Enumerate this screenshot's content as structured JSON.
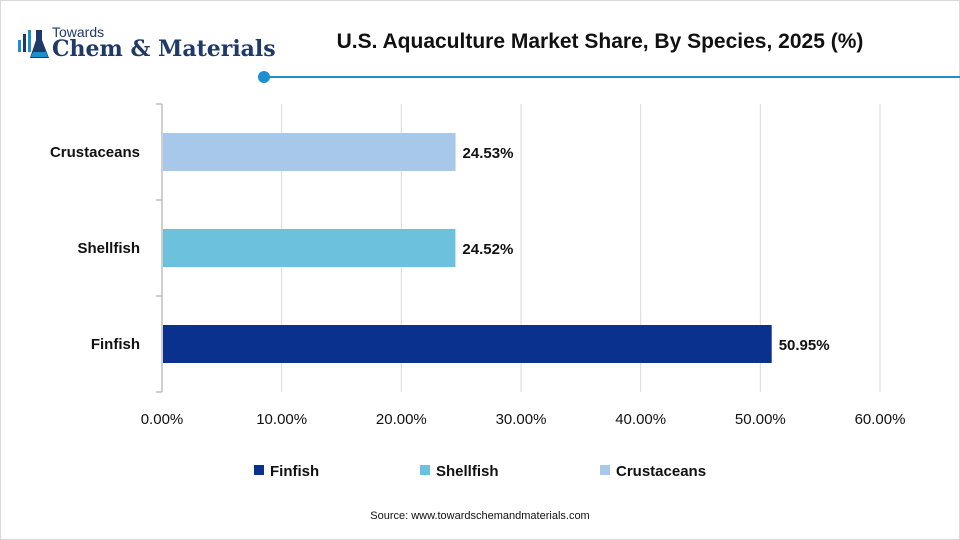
{
  "logo": {
    "towards": "Towards",
    "brand": "Chem & Materials"
  },
  "source": "Source: www.towardschemandmaterials.com",
  "colors": {
    "accent": "#1b8fd0",
    "finfish": "#0b318f",
    "shellfish": "#6cc1dc",
    "crustaceans": "#a7c8e8"
  },
  "chart_data": {
    "type": "bar",
    "orientation": "horizontal",
    "title": "U.S. Aquaculture Market Share, By Species, 2025 (%)",
    "categories": [
      "Crustaceans",
      "Shellfish",
      "Finfish"
    ],
    "values": [
      24.53,
      24.52,
      50.95
    ],
    "value_labels": [
      "24.53%",
      "24.52%",
      "50.95%"
    ],
    "bar_colors": [
      "#a7c8e8",
      "#6cc1dc",
      "#0b318f"
    ],
    "xlim": [
      0,
      60
    ],
    "xticks": [
      0,
      10,
      20,
      30,
      40,
      50,
      60
    ],
    "xtick_labels": [
      "0.00%",
      "10.00%",
      "20.00%",
      "30.00%",
      "40.00%",
      "50.00%",
      "60.00%"
    ],
    "grid": true,
    "legend": {
      "placement": "bottom",
      "entries": [
        {
          "name": "Finfish",
          "color": "#0b318f"
        },
        {
          "name": "Shellfish",
          "color": "#6cc1dc"
        },
        {
          "name": "Crustaceans",
          "color": "#a7c8e8"
        }
      ]
    }
  }
}
